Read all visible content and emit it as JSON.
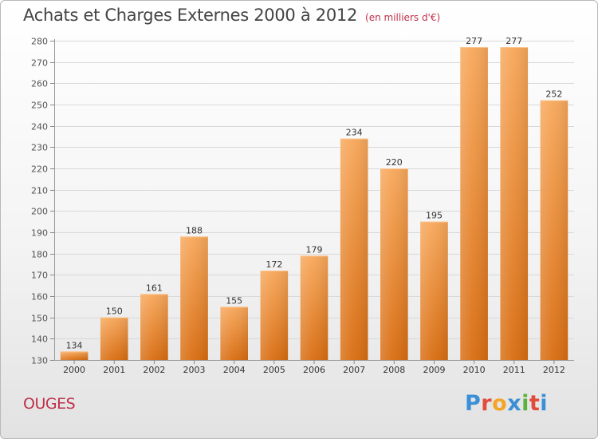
{
  "header": {
    "title": "Achats et Charges Externes 2000 à 2012",
    "subtitle": "(en milliers d'€)"
  },
  "footer": {
    "commune": "OUGES",
    "logo_text": "Proxiti"
  },
  "colors": {
    "bar_top": "#f7a75a",
    "bar_bottom": "#d86c10",
    "accent": "#c0304a"
  },
  "chart_data": {
    "type": "bar",
    "title": "Achats et Charges Externes 2000 à 2012",
    "subtitle": "(en milliers d'€)",
    "categories": [
      "2000",
      "2001",
      "2002",
      "2003",
      "2004",
      "2005",
      "2006",
      "2007",
      "2008",
      "2009",
      "2010",
      "2011",
      "2012"
    ],
    "values": [
      134,
      150,
      161,
      188,
      155,
      172,
      179,
      234,
      220,
      195,
      277,
      277,
      252
    ],
    "ylim": [
      130,
      280
    ],
    "yticks": [
      130,
      140,
      150,
      160,
      170,
      180,
      190,
      200,
      210,
      220,
      230,
      240,
      250,
      260,
      270,
      280
    ],
    "grid": true,
    "xlabel": "",
    "ylabel": ""
  }
}
